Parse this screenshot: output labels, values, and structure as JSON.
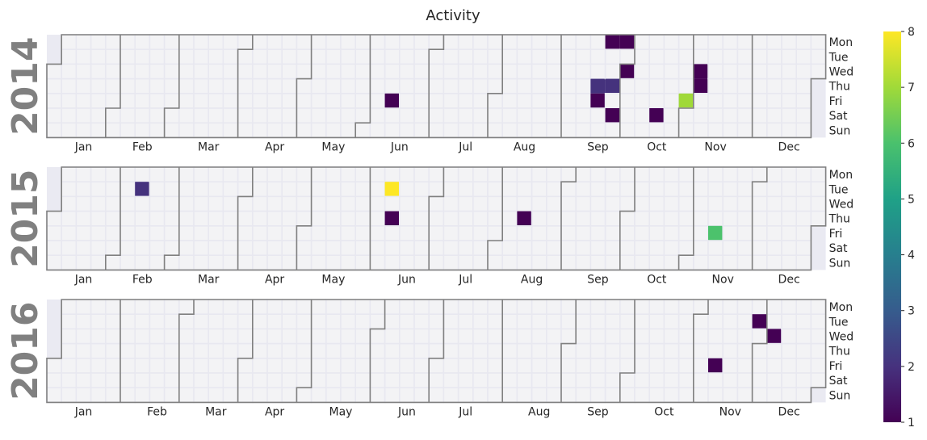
{
  "chart_data": {
    "type": "heatmap",
    "title": "Activity",
    "years": [
      2014,
      2015,
      2016
    ],
    "weekday_labels": [
      "Mon",
      "Tue",
      "Wed",
      "Thu",
      "Fri",
      "Sat",
      "Sun"
    ],
    "month_labels": [
      "Jan",
      "Feb",
      "Mar",
      "Apr",
      "May",
      "Jun",
      "Jul",
      "Aug",
      "Sep",
      "Oct",
      "Nov",
      "Dec"
    ],
    "colorbar": {
      "colormap": "viridis",
      "range": [
        1,
        8
      ],
      "ticks": [
        "1",
        "2",
        "3",
        "4",
        "5",
        "6",
        "7",
        "8"
      ]
    },
    "colors": {
      "empty_day": "#f3f3f5",
      "grid": "#e8e8f0",
      "month_border": "#808080",
      "outside_year": "#eaeaf2"
    },
    "values": [
      {
        "date": "2014-06-13",
        "value": 1
      },
      {
        "date": "2014-09-18",
        "value": 2
      },
      {
        "date": "2014-09-19",
        "value": 1
      },
      {
        "date": "2014-09-22",
        "value": 1
      },
      {
        "date": "2014-09-25",
        "value": 2
      },
      {
        "date": "2014-09-27",
        "value": 1
      },
      {
        "date": "2014-09-29",
        "value": 1
      },
      {
        "date": "2014-10-01",
        "value": 1
      },
      {
        "date": "2014-10-18",
        "value": 1
      },
      {
        "date": "2014-10-31",
        "value": 7
      },
      {
        "date": "2014-11-05",
        "value": 1
      },
      {
        "date": "2014-11-06",
        "value": 1
      },
      {
        "date": "2015-02-10",
        "value": 2
      },
      {
        "date": "2015-06-09",
        "value": 8
      },
      {
        "date": "2015-06-11",
        "value": 1
      },
      {
        "date": "2015-08-13",
        "value": 1
      },
      {
        "date": "2015-11-13",
        "value": 6
      },
      {
        "date": "2016-11-11",
        "value": 1
      },
      {
        "date": "2016-11-29",
        "value": 1
      },
      {
        "date": "2016-12-07",
        "value": 1
      }
    ]
  }
}
